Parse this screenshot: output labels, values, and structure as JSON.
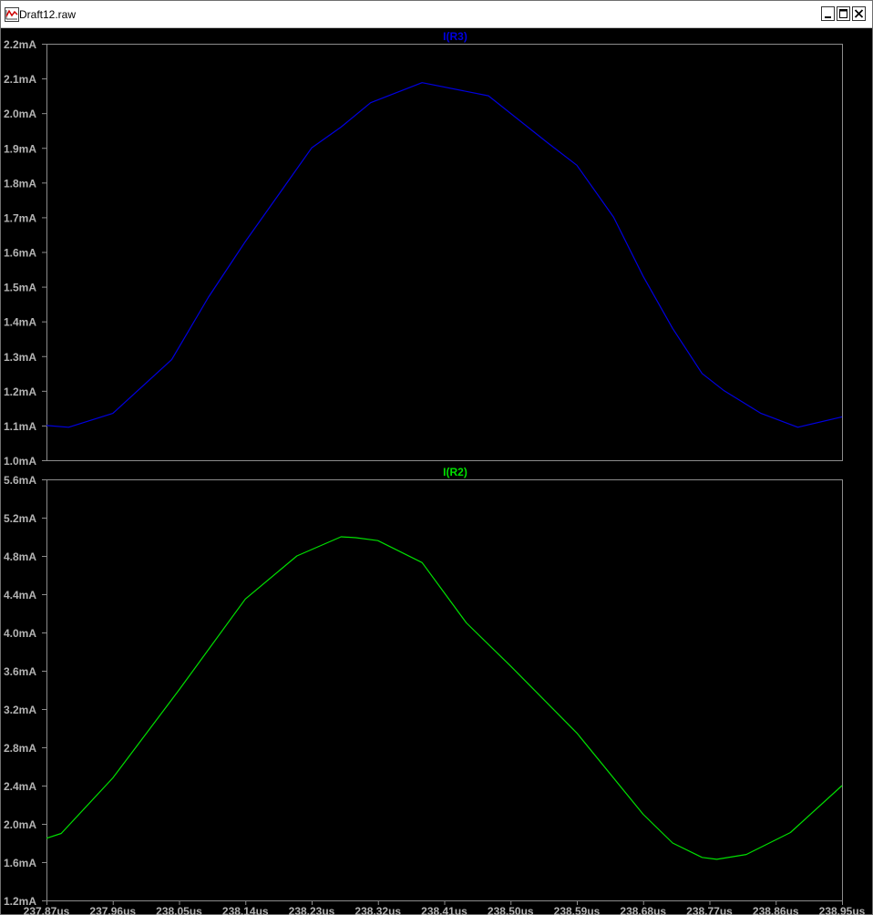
{
  "window": {
    "title": "Draft12.raw",
    "icon": "waveform-icon",
    "buttons": [
      "minimize",
      "maximize",
      "close"
    ]
  },
  "colors": {
    "background": "#000000",
    "grid_frame": "#8c8c8c",
    "tick_text": "#b4b4b4",
    "trace_r3": "#0000e0",
    "trace_r2": "#00e000"
  },
  "chart_data": [
    {
      "type": "line",
      "title": "I(R3)",
      "series": [
        {
          "name": "I(R3)",
          "x": [
            237.87,
            237.9,
            237.96,
            238.04,
            238.09,
            238.14,
            238.19,
            238.23,
            238.27,
            238.31,
            238.38,
            238.47,
            238.55,
            238.59,
            238.64,
            238.68,
            238.72,
            238.76,
            238.79,
            238.84,
            238.89,
            238.95
          ],
          "values": [
            1.1,
            1.095,
            1.135,
            1.29,
            1.47,
            1.63,
            1.78,
            1.9,
            1.96,
            2.03,
            2.088,
            2.05,
            1.915,
            1.85,
            1.7,
            1.53,
            1.38,
            1.25,
            1.2,
            1.135,
            1.095,
            1.125
          ]
        }
      ],
      "x_unit": "us",
      "xlim": [
        237.87,
        238.95
      ],
      "ylim": [
        1.0,
        2.2
      ],
      "y_ticks": [
        "1.0mA",
        "1.1mA",
        "1.2mA",
        "1.3mA",
        "1.4mA",
        "1.5mA",
        "1.6mA",
        "1.7mA",
        "1.8mA",
        "1.9mA",
        "2.0mA",
        "2.1mA",
        "2.2mA"
      ],
      "grid": false
    },
    {
      "type": "line",
      "title": "I(R2)",
      "series": [
        {
          "name": "I(R2)",
          "x": [
            237.87,
            237.89,
            237.96,
            238.05,
            238.14,
            238.21,
            238.27,
            238.29,
            238.32,
            238.38,
            238.44,
            238.5,
            238.59,
            238.68,
            238.72,
            238.76,
            238.78,
            238.82,
            238.88,
            238.95
          ],
          "values": [
            1.85,
            1.9,
            2.48,
            3.4,
            4.35,
            4.8,
            5.0,
            4.99,
            4.96,
            4.73,
            4.1,
            3.65,
            2.95,
            2.1,
            1.8,
            1.65,
            1.63,
            1.68,
            1.91,
            2.4
          ]
        }
      ],
      "x_unit": "us",
      "xlim": [
        237.87,
        238.95
      ],
      "ylim": [
        1.2,
        5.6
      ],
      "y_ticks": [
        "1.2mA",
        "1.6mA",
        "2.0mA",
        "2.4mA",
        "2.8mA",
        "3.2mA",
        "3.6mA",
        "4.0mA",
        "4.4mA",
        "4.8mA",
        "5.2mA",
        "5.6mA"
      ],
      "x_ticks": [
        "237.87us",
        "237.96us",
        "238.05us",
        "238.14us",
        "238.23us",
        "238.32us",
        "238.41us",
        "238.50us",
        "238.59us",
        "238.68us",
        "238.77us",
        "238.86us",
        "238.95us"
      ],
      "grid": false
    }
  ]
}
